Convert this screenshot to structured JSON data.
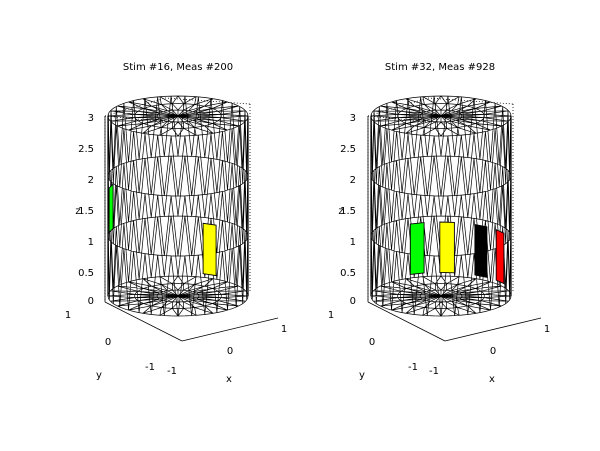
{
  "plots": [
    {
      "title": "Stim #16, Meas #200",
      "axes": {
        "z_ticks": [
          "0",
          "0.5",
          "1",
          "1.5",
          "2",
          "2.5",
          "3"
        ],
        "z_label": "z",
        "y_ticks": [
          "1",
          "0",
          "-1"
        ],
        "y_label": "y",
        "x_ticks": [
          "-1",
          "0",
          "1"
        ],
        "x_label": "x"
      },
      "electrodes": [
        {
          "color": "#00ff00",
          "row": "upper",
          "angle_deg": 196
        },
        {
          "color": "#ffff00",
          "row": "lower",
          "angle_deg": 297
        }
      ]
    },
    {
      "title": "Stim #32, Meas #928",
      "axes": {
        "z_ticks": [
          "0",
          "0.5",
          "1",
          "1.5",
          "2",
          "2.5",
          "3"
        ],
        "z_label": "z",
        "y_ticks": [
          "1",
          "0",
          "-1"
        ],
        "y_label": "y",
        "x_ticks": [
          "-1",
          "0",
          "1"
        ],
        "x_label": "x"
      },
      "electrodes": [
        {
          "color": "#00ff00",
          "row": "lower",
          "angle_deg": 250
        },
        {
          "color": "#ffff00",
          "row": "lower",
          "angle_deg": 275
        },
        {
          "color": "#000000",
          "row": "lower",
          "angle_deg": 305
        },
        {
          "color": "#ff0000",
          "row": "lower",
          "angle_deg": 328
        }
      ]
    }
  ]
}
